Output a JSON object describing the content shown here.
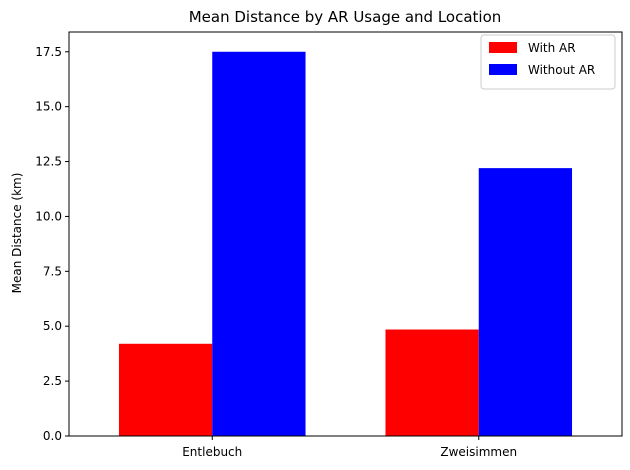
{
  "chart_data": {
    "type": "bar",
    "title": "Mean Distance by AR Usage and Location",
    "xlabel": "",
    "ylabel": "Mean Distance (km)",
    "categories": [
      "Entlebuch",
      "Zweisimmen"
    ],
    "series": [
      {
        "name": "With AR",
        "values": [
          4.2,
          4.85
        ],
        "color": "#ff0000"
      },
      {
        "name": "Without AR",
        "values": [
          17.5,
          12.2
        ],
        "color": "#0000ff"
      }
    ],
    "ylim": [
      0,
      18.4
    ],
    "yticks": [
      "0.0",
      "2.5",
      "5.0",
      "7.5",
      "10.0",
      "12.5",
      "15.0",
      "17.5"
    ],
    "grid": false,
    "legend": "top-right"
  }
}
